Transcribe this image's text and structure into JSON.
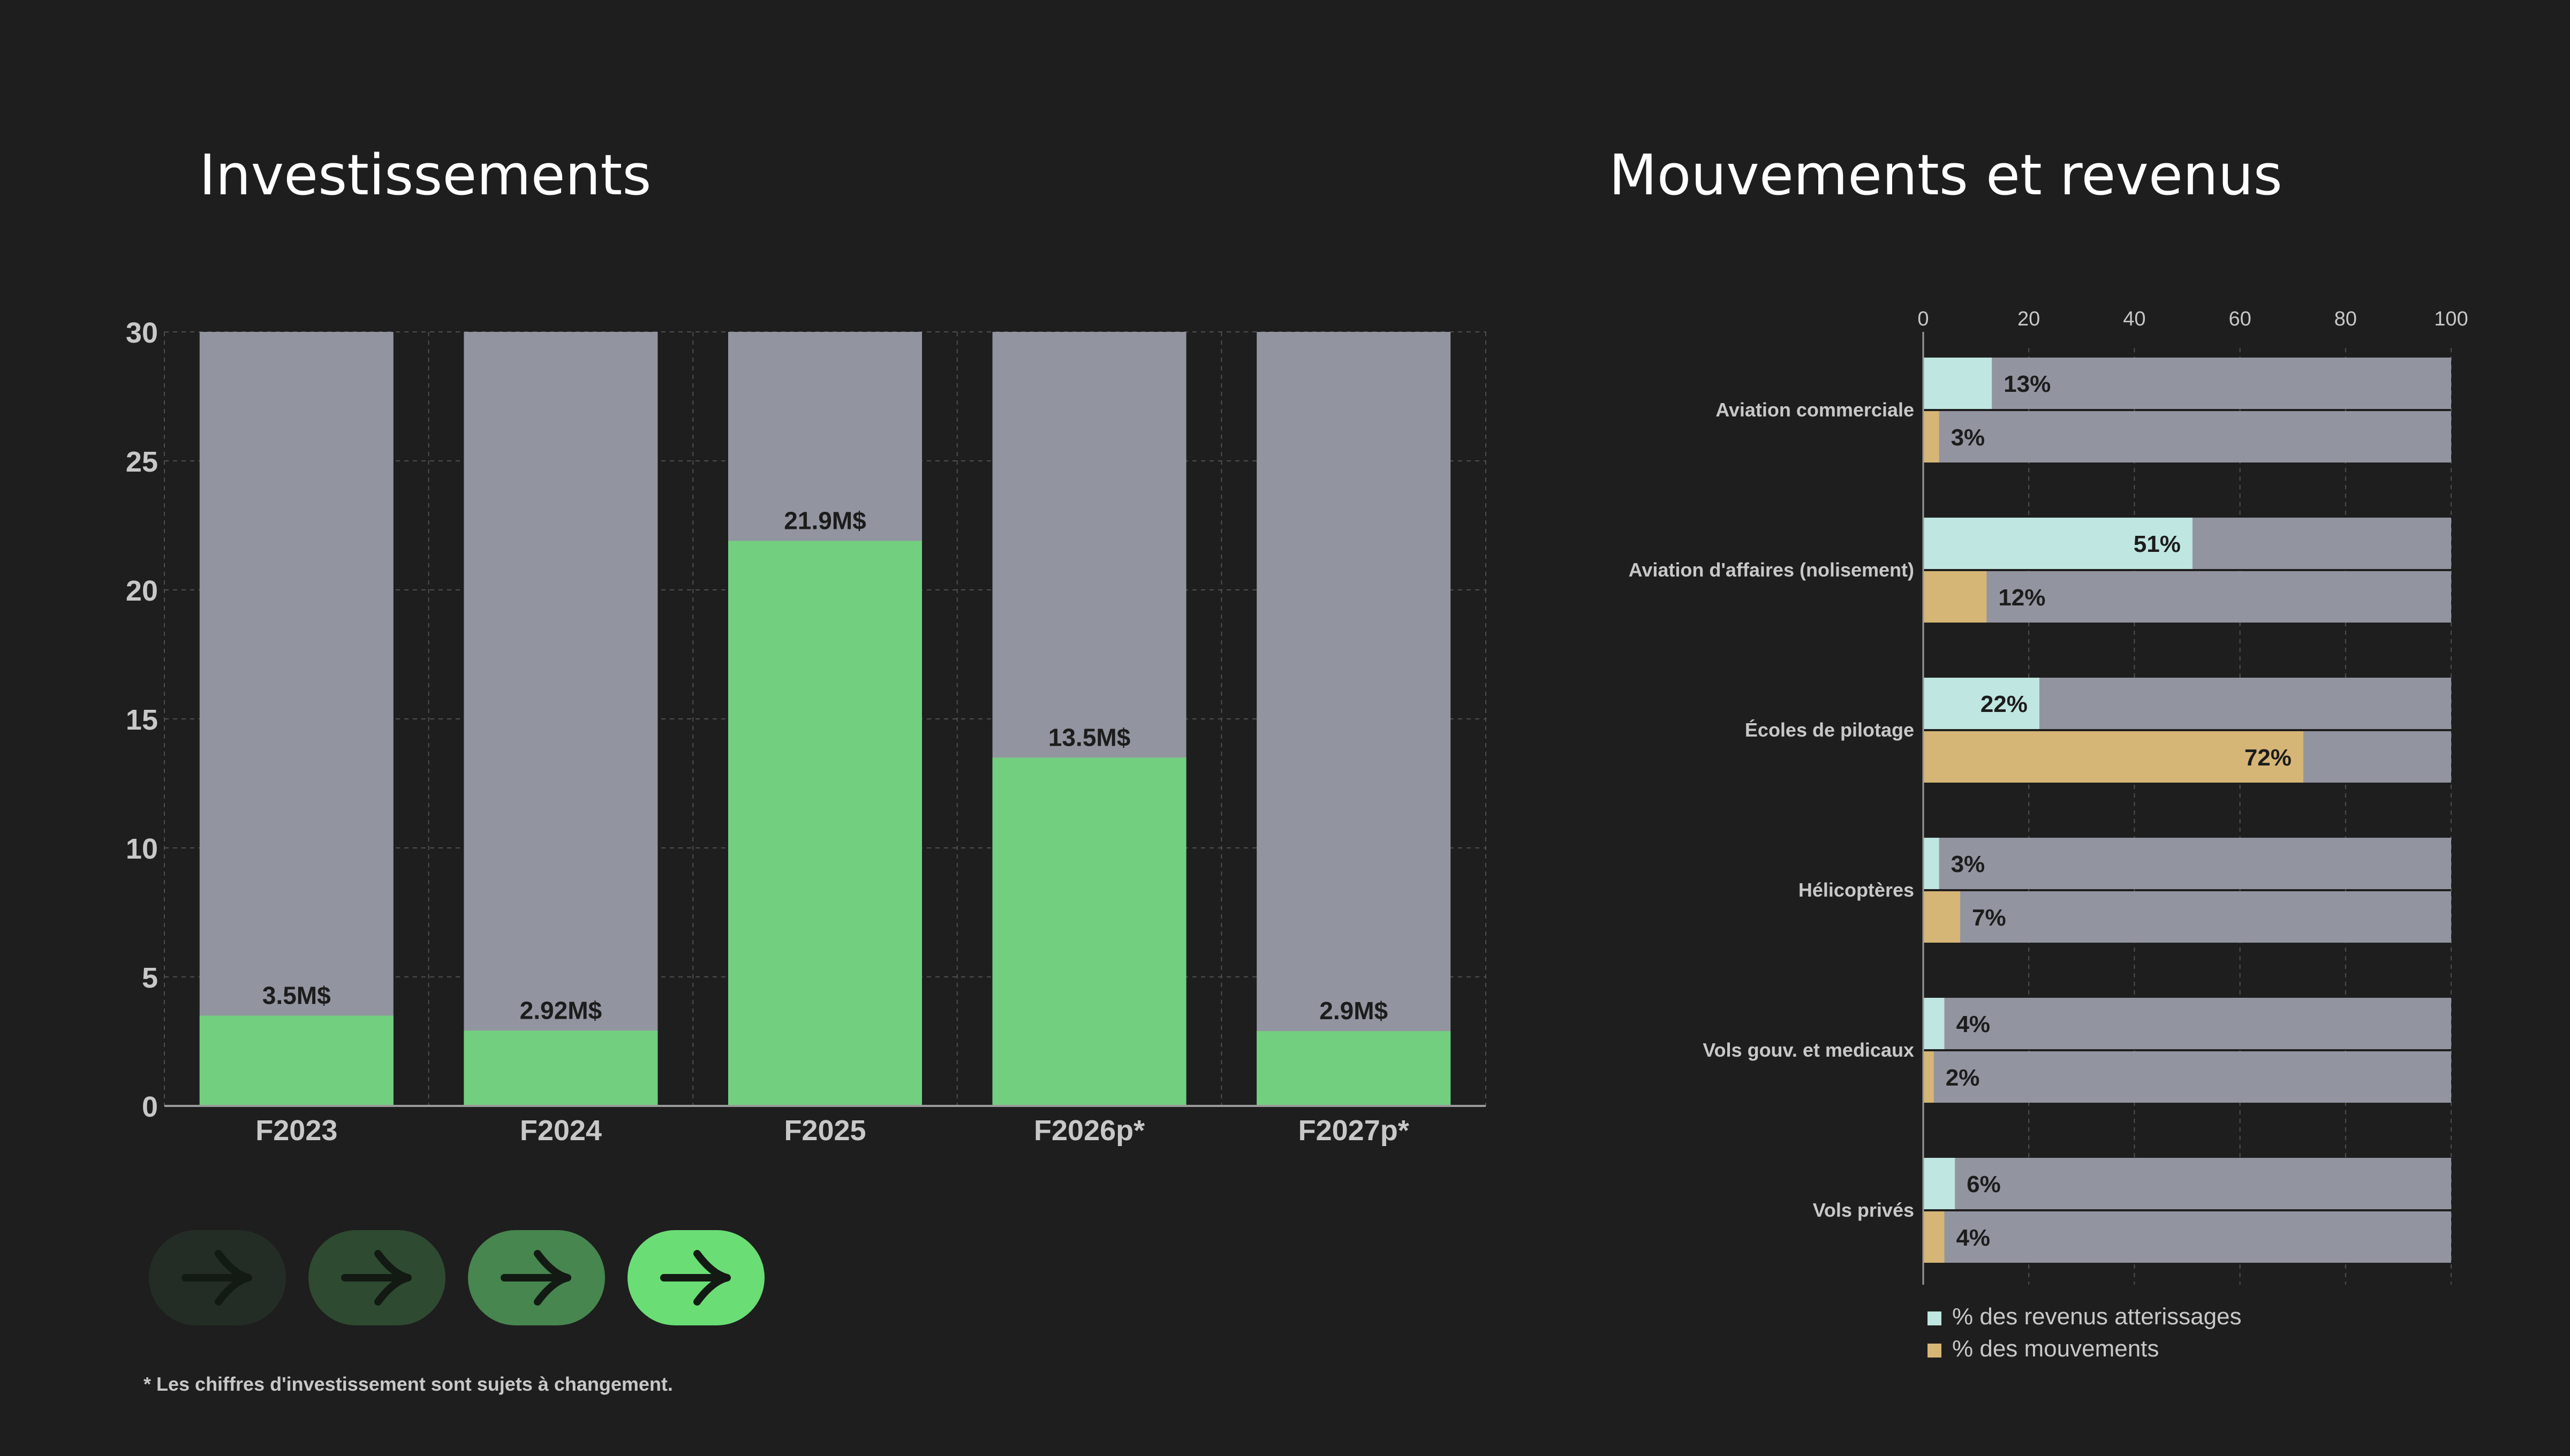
{
  "titles": {
    "left": "Investissements",
    "right": "Mouvements et revenus"
  },
  "footnote": "* Les chiffres d'investissement sont sujets à changement.",
  "colors": {
    "background": "#1e1e1e",
    "track": "#9295a0",
    "investment": "#73cf80",
    "revenue": "#bfe6e0",
    "movement": "#d6b676",
    "grid": "#4e4e4e",
    "axis_text": "#c8c8c8"
  },
  "nav_buttons": [
    {
      "name": "nav-button-1",
      "icon": "arrow-right-icon",
      "bg": "#242d25",
      "fg": "#121a13"
    },
    {
      "name": "nav-button-2",
      "icon": "arrow-right-icon",
      "bg": "#2e4a31",
      "fg": "#121a13"
    },
    {
      "name": "nav-button-3",
      "icon": "arrow-right-icon",
      "bg": "#47864f",
      "fg": "#121a13"
    },
    {
      "name": "nav-button-4",
      "icon": "arrow-right-icon",
      "bg": "#6bdd75",
      "fg": "#121a13"
    }
  ],
  "chart_data": [
    {
      "type": "bar",
      "title": "Investissements",
      "categories": [
        "F2023",
        "F2024",
        "F2025",
        "F2026p*",
        "F2027p*"
      ],
      "values": [
        3.5,
        2.92,
        21.9,
        13.5,
        2.9
      ],
      "data_labels": [
        "3.5M$",
        "2.92M$",
        "21.9M$",
        "13.5M$",
        "2.9M$"
      ],
      "ylim": [
        0,
        30
      ],
      "yticks": [
        0,
        5,
        10,
        15,
        20,
        25,
        30
      ],
      "grid": true,
      "background_bar_max": 30
    },
    {
      "type": "bar",
      "orientation": "horizontal",
      "title": "Mouvements et revenus",
      "categories": [
        "Aviation commerciale",
        "Aviation d'affaires (nolisement)",
        "Écoles de pilotage",
        "Hélicoptères",
        "Vols gouv. et medicaux",
        "Vols privés"
      ],
      "series": [
        {
          "name": "% des revenus atterissages",
          "values": [
            13,
            51,
            22,
            3,
            4,
            6
          ],
          "labels": [
            "13%",
            "51%",
            "22%",
            "3%",
            "4%",
            "6%"
          ]
        },
        {
          "name": "% des mouvements",
          "values": [
            3,
            12,
            72,
            7,
            2,
            4
          ],
          "labels": [
            "3%",
            "12%",
            "72%",
            "7%",
            "2%",
            "4%"
          ]
        }
      ],
      "xlim": [
        0,
        100
      ],
      "xticks": [
        0,
        20,
        40,
        60,
        80,
        100
      ],
      "grid": true,
      "legend_position": "bottom-left"
    }
  ]
}
